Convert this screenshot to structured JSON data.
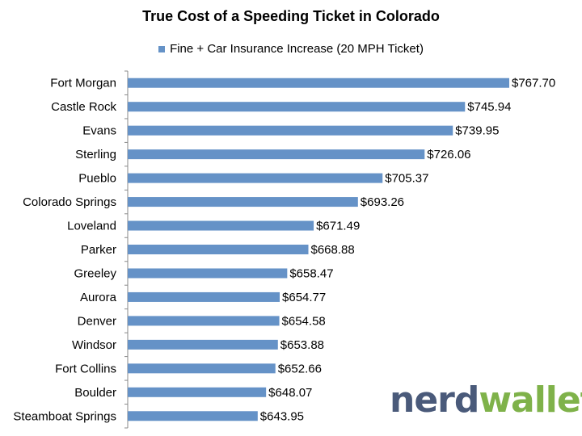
{
  "chart_data": {
    "type": "bar",
    "orientation": "horizontal",
    "title": "True Cost of a Speeding Ticket in Colorado",
    "legend_position": "top",
    "grid": false,
    "xlim": [
      580,
      775
    ],
    "categories": [
      "Fort Morgan",
      "Castle Rock",
      "Evans",
      "Sterling",
      "Pueblo",
      "Colorado Springs",
      "Loveland",
      "Parker",
      "Greeley",
      "Aurora",
      "Denver",
      "Windsor",
      "Fort Collins",
      "Boulder",
      "Steamboat Springs"
    ],
    "series": [
      {
        "name": "Fine + Car Insurance Increase (20 MPH Ticket)",
        "color": "#6592c7",
        "values": [
          767.7,
          745.94,
          739.95,
          726.06,
          705.37,
          693.26,
          671.49,
          668.88,
          658.47,
          654.77,
          654.58,
          653.88,
          652.66,
          648.07,
          643.95
        ],
        "labels": [
          "$767.70",
          "$745.94",
          "$739.95",
          "$726.06",
          "$705.37",
          "$693.26",
          "$671.49",
          "$668.88",
          "$658.47",
          "$654.77",
          "$654.58",
          "$653.88",
          "$652.66",
          "$648.07",
          "$643.95"
        ]
      }
    ]
  },
  "logo": {
    "part1": "nerd",
    "part2": "wallet",
    "color1": "#4a5a7a",
    "color2": "#7fb24a"
  }
}
